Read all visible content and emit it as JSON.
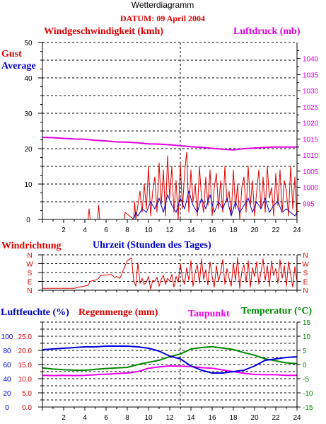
{
  "title": "Wetterdiagramm",
  "date_label": "DATUM: 09 April 2004",
  "colors": {
    "gust": "#e00000",
    "average": "#0000cc",
    "pressure": "#e000e0",
    "direction": "#e00000",
    "humidity": "#0000dd",
    "rain": "#e00000",
    "dewpoint": "#ee00ee",
    "temperature": "#008800",
    "grid": "#000000"
  },
  "chart_data": [
    {
      "type": "line",
      "title": "Windgeschwindigkeit (kmh)",
      "right_title": "Luftdruck (mb)",
      "legend": [
        "Gust",
        "Average"
      ],
      "xlabel": "",
      "xlim": [
        0,
        24
      ],
      "xticks": [
        "2",
        "4",
        "6",
        "8",
        "10",
        "12",
        "14",
        "16",
        "18",
        "20",
        "22",
        "24"
      ],
      "ylim": [
        0,
        50
      ],
      "yticks": [
        "0",
        "10",
        "20",
        "30",
        "40",
        "50"
      ],
      "y2lim": [
        990,
        1045
      ],
      "y2ticks": [
        "995",
        "1000",
        "1005",
        "1010",
        "1015",
        "1020",
        "1025",
        "1030",
        "1035",
        "1040"
      ],
      "series": [
        {
          "name": "Gust",
          "x": [
            0,
            4.3,
            4.4,
            4.5,
            5.2,
            5.3,
            5.4,
            6.8,
            7.7,
            7.8,
            8.6,
            8.7,
            8.8,
            9.0,
            9.2,
            9.4,
            9.6,
            9.8,
            10.0,
            10.2,
            10.4,
            10.6,
            10.8,
            11.0,
            11.2,
            11.4,
            11.6,
            11.8,
            12.0,
            12.2,
            12.4,
            12.6,
            12.8,
            13.0,
            13.2,
            13.4,
            13.6,
            13.8,
            14.0,
            14.2,
            14.4,
            14.6,
            14.8,
            15.0,
            15.2,
            15.4,
            15.6,
            15.8,
            16.0,
            16.2,
            16.4,
            16.6,
            16.8,
            17.0,
            17.2,
            17.4,
            17.6,
            17.8,
            18.0,
            18.2,
            18.4,
            18.6,
            18.8,
            19.0,
            19.2,
            19.4,
            19.6,
            19.8,
            20.0,
            20.2,
            20.4,
            20.6,
            20.8,
            21.0,
            21.2,
            21.4,
            21.6,
            21.8,
            22.0,
            22.2,
            22.4,
            22.6,
            22.8,
            23.0,
            23.2,
            23.4,
            23.6,
            23.8,
            24.0
          ],
          "values": [
            0,
            0,
            3,
            0,
            0,
            4,
            0,
            0,
            0,
            2,
            0,
            5,
            0,
            4,
            8,
            2,
            10,
            3,
            15,
            1,
            8,
            12,
            2,
            16,
            4,
            14,
            1,
            18,
            6,
            15,
            2,
            11,
            0,
            16,
            3,
            13,
            19,
            2,
            14,
            5,
            10,
            1,
            15,
            6,
            2,
            12,
            4,
            14,
            1,
            9,
            13,
            3,
            11,
            2,
            15,
            5,
            8,
            1,
            14,
            3,
            10,
            0,
            9,
            12,
            2,
            15,
            4,
            11,
            1,
            8,
            14,
            3,
            12,
            2,
            15,
            6,
            9,
            1,
            13,
            4,
            14,
            2,
            11,
            8,
            1,
            15,
            3,
            12,
            0
          ]
        },
        {
          "name": "Average",
          "x": [
            0,
            8.6,
            8.8,
            9.0,
            9.4,
            9.8,
            10.2,
            10.6,
            11.0,
            11.4,
            11.8,
            12.2,
            12.6,
            13.0,
            13.4,
            13.8,
            14.2,
            14.6,
            15.0,
            15.4,
            15.8,
            16.2,
            16.6,
            17.0,
            17.4,
            17.8,
            18.2,
            18.6,
            19.0,
            19.4,
            19.8,
            20.2,
            20.6,
            21.0,
            21.4,
            21.8,
            22.2,
            22.6,
            23.0,
            23.4,
            23.8,
            24.0
          ],
          "values": [
            0,
            0,
            2,
            1,
            3,
            2,
            5,
            3,
            6,
            2,
            7,
            4,
            2,
            6,
            3,
            8,
            4,
            2,
            6,
            3,
            7,
            2,
            5,
            3,
            6,
            1,
            5,
            2,
            4,
            6,
            2,
            5,
            3,
            6,
            2,
            4,
            5,
            2,
            3,
            2,
            1,
            2
          ]
        },
        {
          "name": "Luftdruck",
          "axis": "right",
          "x": [
            0,
            1,
            2,
            3,
            4,
            5,
            6,
            7,
            8,
            9,
            10,
            11,
            12,
            13,
            14,
            15,
            16,
            17,
            18,
            19,
            20,
            21,
            22,
            23,
            24
          ],
          "values": [
            1015.5,
            1015.4,
            1015.2,
            1015.0,
            1014.9,
            1014.6,
            1014.4,
            1014.1,
            1014.0,
            1013.8,
            1013.5,
            1013.4,
            1013.2,
            1012.9,
            1012.6,
            1012.4,
            1012.1,
            1011.8,
            1011.6,
            1012.0,
            1012.2,
            1012.4,
            1012.5,
            1012.5,
            1012.5
          ]
        }
      ]
    },
    {
      "type": "line",
      "title": "Windrichtung",
      "xlabel": "Uhrzeit (Stunden des Tages)",
      "xlim": [
        0,
        24
      ],
      "ylim": [
        0,
        360
      ],
      "yticks_left": [
        "N",
        "W",
        "S",
        "E",
        "N"
      ],
      "yticks_right": [
        "N",
        "W",
        "S",
        "E",
        "N"
      ],
      "series": [
        {
          "name": "Windrichtung",
          "x": [
            0,
            3,
            4.3,
            4.5,
            5.2,
            5.5,
            6.5,
            6.8,
            7.0,
            7.3,
            8.0,
            8.4,
            8.6,
            8.8,
            9.0,
            9.2,
            9.4,
            9.6,
            9.8,
            10.0,
            10.2,
            10.4,
            10.6,
            10.8,
            11.0,
            11.2,
            11.4,
            11.6,
            11.8,
            12.0,
            12.2,
            12.4,
            12.6,
            12.8,
            13.0,
            13.2,
            13.4,
            13.6,
            13.8,
            14.0,
            14.2,
            14.4,
            14.6,
            14.8,
            15.0,
            15.2,
            15.4,
            15.6,
            15.8,
            16.0,
            16.2,
            16.4,
            16.6,
            16.8,
            17.0,
            17.2,
            17.4,
            17.6,
            17.8,
            18.0,
            18.2,
            18.4,
            18.6,
            18.8,
            19.0,
            19.2,
            19.4,
            19.6,
            19.8,
            20.0,
            20.2,
            20.4,
            20.6,
            20.8,
            21.0,
            21.2,
            21.4,
            21.6,
            21.8,
            22.0,
            22.2,
            22.4,
            22.6,
            22.8,
            23.0,
            23.2,
            23.4,
            23.6,
            23.8,
            24.0
          ],
          "values": [
            20,
            20,
            50,
            90,
            110,
            150,
            160,
            130,
            140,
            120,
            300,
            330,
            100,
            40,
            280,
            70,
            120,
            60,
            80,
            140,
            10,
            100,
            90,
            130,
            40,
            110,
            150,
            60,
            120,
            90,
            160,
            30,
            140,
            80,
            270,
            120,
            60,
            230,
            100,
            300,
            40,
            180,
            260,
            70,
            320,
            110,
            210,
            50,
            290,
            140,
            30,
            250,
            90,
            180,
            310,
            60,
            220,
            120,
            40,
            280,
            100,
            330,
            20,
            190,
            260,
            80,
            300,
            30,
            230,
            140,
            290,
            60,
            180,
            320,
            100,
            250,
            40,
            300,
            150,
            220,
            70,
            310,
            120,
            250,
            40,
            290,
            160,
            30,
            240,
            90
          ]
        }
      ]
    },
    {
      "type": "line",
      "title": "Luftfeuchte (%)",
      "title_2": "Regenmenge (mm)",
      "title_3": "Taupunkt",
      "title_4": "Temperatur (°C)",
      "xlabel": "",
      "xlim": [
        0,
        24
      ],
      "xticks": [
        "2",
        "4",
        "6",
        "8",
        "10",
        "12",
        "14",
        "16",
        "18",
        "20",
        "22",
        "24"
      ],
      "ylim": [
        0,
        120
      ],
      "yticks_humidity": [
        "0",
        "20",
        "40",
        "60",
        "80",
        "100"
      ],
      "yticks_rain": [
        "0.0",
        "5.0",
        "10.0",
        "15.0",
        "20.0",
        "25.0"
      ],
      "y2lim": [
        -15,
        15
      ],
      "y2ticks": [
        "-15",
        "-10",
        "-5",
        "0",
        "5",
        "10",
        "15"
      ],
      "series": [
        {
          "name": "Luftfeuchte",
          "x": [
            0,
            1,
            2,
            3,
            4,
            5,
            6,
            7,
            8,
            9,
            10,
            11,
            12,
            13,
            14,
            15,
            16,
            17,
            18,
            19,
            20,
            21,
            22,
            23,
            24
          ],
          "values": [
            81,
            82,
            83,
            84,
            85,
            85,
            86,
            86,
            86,
            85,
            83,
            79,
            72,
            68,
            58,
            52,
            48,
            48,
            50,
            52,
            58,
            66,
            68,
            70,
            71
          ]
        },
        {
          "name": "Temperatur",
          "axis": "right",
          "x": [
            0,
            1,
            2,
            3,
            4,
            5,
            6,
            7,
            8,
            9,
            10,
            11,
            12,
            13,
            14,
            15,
            16,
            17,
            18,
            19,
            20,
            21,
            22,
            23,
            24
          ],
          "values": [
            -1.2,
            -1.6,
            -1.8,
            -2.0,
            -2.0,
            -1.7,
            -1.4,
            -1.2,
            -1.0,
            0.0,
            0.8,
            1.5,
            2.8,
            3.7,
            5.5,
            6.0,
            6.3,
            5.8,
            5.3,
            4.2,
            3.3,
            2.0,
            1.3,
            0.6,
            0.3
          ]
        },
        {
          "name": "Taupunkt",
          "axis": "right",
          "x": [
            0,
            1,
            2,
            3,
            4,
            5,
            6,
            7,
            8,
            9,
            10,
            11,
            12,
            13,
            14,
            15,
            16,
            17,
            18,
            19,
            20,
            21,
            22,
            23,
            24
          ],
          "values": [
            -3.8,
            -3.9,
            -3.8,
            -3.9,
            -3.8,
            -3.6,
            -3.4,
            -3.2,
            -3.0,
            -2.5,
            -1.3,
            -0.8,
            -0.5,
            -0.6,
            -0.7,
            -1.1,
            -1.3,
            -1.9,
            -2.5,
            -3.1,
            -3.5,
            -3.6,
            -3.6,
            -3.8,
            -3.8
          ]
        },
        {
          "name": "Regenmenge",
          "values": [
            0,
            0
          ]
        }
      ]
    }
  ]
}
